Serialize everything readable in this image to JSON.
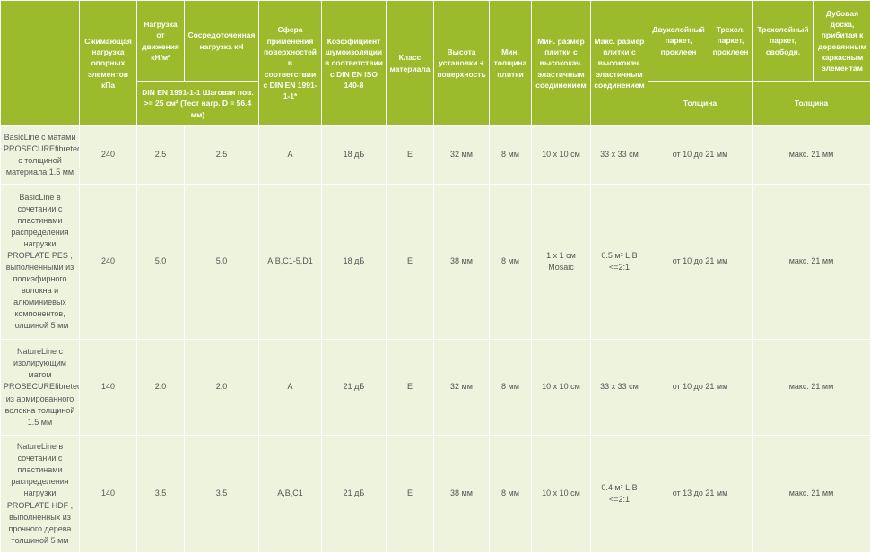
{
  "header": {
    "columns": [
      "Сжимающая нагрузка опорных элементов кПа",
      "Нагрузка от движения кН/м²",
      "Сосредоточенная нагрузка кН",
      "Сфера применения поверхностей в соответствии с DIN EN 1991-1-1*",
      "Коэффициент шумоизоляции в соответствии с DIN EN ISO 140-8",
      "Класс материала",
      "Высота установки + поверхность",
      "Мин. толщина плитки",
      "Мин. размер плитки с высококач. эластичным соединением",
      "Макс. размер плитки с высококач. эластичным соединением",
      "Двухслойный паркет, проклеен",
      "Трехсл. паркет, проклеен",
      "Трехслойный паркет, свободн.",
      "Дубовая доска, прибитая к деревянным каркасным элементам"
    ],
    "load_note": "DIN EN 1991-1-1 Шаговая пов. >= 25 см² (Тест нагр. D = 56.4 мм)",
    "thickness_glued": "Толщина",
    "thickness_free": "Толщина"
  },
  "table": {
    "rows": [
      [
        "BasicLine с матами PROSECUREfibretec с толщиной материала 1.5 мм",
        "240",
        "2.5",
        "2.5",
        "A",
        "18 дБ",
        "E",
        "32 мм",
        "8 мм",
        "10 x 10 см",
        "33 x 33 см",
        "от 10 до 21 мм",
        "макс. 21 мм"
      ],
      [
        "BasicLine в сочетании с пластинами распределения нагрузки PROPLATE PES , выполненными из полиэфирного волокна и алюминиевых компонентов, толщиной 5 мм",
        "240",
        "5.0",
        "5.0",
        "A,B,C1-5,D1",
        "18 дБ",
        "E",
        "38 мм",
        "8 мм",
        "1 x 1 см Mosaic",
        "0.5 м² L:B <=2:1",
        "от 10 до 21 мм",
        "макс. 21 мм"
      ],
      [
        "NatureLine с изолирующим матом PROSECUREfibretec из армированного волокна толщиной 1.5 мм",
        "140",
        "2.0",
        "2.0",
        "A",
        "21 дБ",
        "E",
        "32 мм",
        "8 мм",
        "10 x 10 см",
        "33 x 33 см",
        "от 10 до 21 мм",
        "макс. 21 мм"
      ],
      [
        "NatureLine в сочетании с пластинами распределения нагрузки PROPLATE HDF , выполненных из прочного дерева толщиной 5 мм",
        "140",
        "3.5",
        "3.5",
        "A,B,C1",
        "21 дБ",
        "E",
        "38 мм",
        "8 мм",
        "10 x 10 см",
        "0.4 м² L:B <=2:1",
        "от 13 до 21 мм",
        "макс. 21 мм"
      ]
    ]
  }
}
